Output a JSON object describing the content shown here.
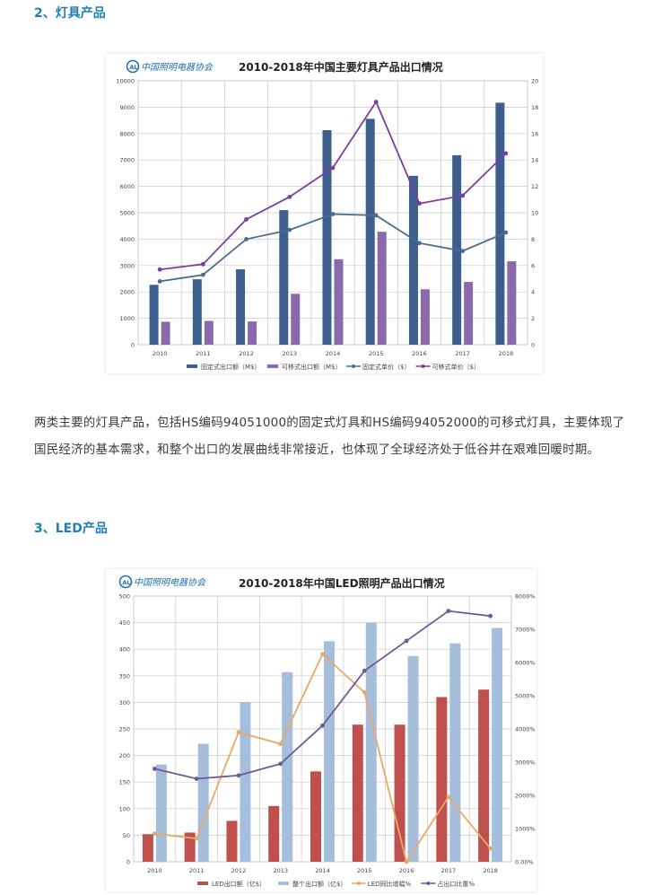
{
  "section2": {
    "heading": "2、灯具产品"
  },
  "paragraph": "两类主要的灯具产品，包括HS编码94051000的固定式灯具和HS编码94052000的可移式灯具，主要体现了国民经济的基本需求，和整个出口的发展曲线非常接近，也体现了全球经济处于低谷并在艰难回暖时期。",
  "section3": {
    "heading": "3、LED产品"
  },
  "logo_text": "中国照明电器协会",
  "colors": {
    "fixed_bar": "#3d5f8f",
    "mobile_bar": "#8a6aaa",
    "fixed_line": "#4a6e8e",
    "mobile_line": "#7a3f9e",
    "led_bar": "#c0504d",
    "total_bar": "#a5bedc",
    "growth_line": "#e8a86a",
    "share_line": "#6f5a96",
    "heading": "#1d7fb5"
  },
  "chart_data": [
    {
      "type": "bar",
      "title": "2010-2018年中国主要灯具产品出口情况",
      "categories": [
        "2010",
        "2011",
        "2012",
        "2013",
        "2014",
        "2015",
        "2016",
        "2017",
        "2018"
      ],
      "ylim": [
        0,
        10000
      ],
      "y2lim": [
        0,
        20
      ],
      "y_ticks": [
        "0",
        "1000",
        "2000",
        "3000",
        "4000",
        "5000",
        "6000",
        "7000",
        "8000",
        "9000",
        "10000"
      ],
      "y2_ticks": [
        "0",
        "2",
        "4",
        "6",
        "8",
        "10",
        "12",
        "14",
        "16",
        "18",
        "20"
      ],
      "series": [
        {
          "name": "固定式出口额（M$）",
          "kind": "bar",
          "axis": "left",
          "values": [
            2270,
            2480,
            2860,
            5100,
            8130,
            8560,
            6400,
            7180,
            9170
          ]
        },
        {
          "name": "可移式出口额（M$）",
          "kind": "bar",
          "axis": "left",
          "values": [
            870,
            900,
            880,
            1930,
            3240,
            4280,
            2100,
            2380,
            3160
          ]
        },
        {
          "name": "固定式单价（$）",
          "kind": "line",
          "axis": "right",
          "values": [
            4.8,
            5.3,
            8.0,
            8.7,
            9.9,
            9.8,
            7.7,
            7.1,
            8.5
          ]
        },
        {
          "name": "可移式单价（$）",
          "kind": "line",
          "axis": "right",
          "values": [
            5.7,
            6.1,
            9.5,
            11.2,
            13.4,
            18.4,
            10.7,
            11.3,
            14.5
          ]
        }
      ]
    },
    {
      "type": "bar",
      "title": "2010-2018年中国LED照明产品出口情况",
      "categories": [
        "2010",
        "2011",
        "2012",
        "2013",
        "2014",
        "2015",
        "2016",
        "2017",
        "2018"
      ],
      "ylim": [
        0,
        500
      ],
      "y2lim": [
        0,
        8000
      ],
      "y_ticks": [
        "0",
        "50",
        "100",
        "150",
        "200",
        "250",
        "300",
        "350",
        "400",
        "450",
        "500"
      ],
      "y2_ticks": [
        "0.00%",
        "1000%",
        "2000%",
        "3000%",
        "4000%",
        "5000%",
        "6000%",
        "7000%",
        "8000%"
      ],
      "series": [
        {
          "name": "LED出口额（亿$）",
          "kind": "bar",
          "axis": "left",
          "values": [
            52,
            55,
            77,
            105,
            170,
            258,
            258,
            310,
            324
          ]
        },
        {
          "name": "整个出口额（亿$）",
          "kind": "bar",
          "axis": "left",
          "values": [
            183,
            222,
            300,
            357,
            415,
            450,
            387,
            411,
            440
          ]
        },
        {
          "name": "LED同比增幅%",
          "kind": "line",
          "axis": "right",
          "values": [
            850,
            700,
            3900,
            3550,
            6250,
            5100,
            0,
            1950,
            400
          ]
        },
        {
          "name": "占出口比重%",
          "kind": "line",
          "axis": "right",
          "values": [
            2800,
            2500,
            2600,
            2950,
            4100,
            5750,
            6650,
            7550,
            7400
          ]
        }
      ]
    }
  ]
}
